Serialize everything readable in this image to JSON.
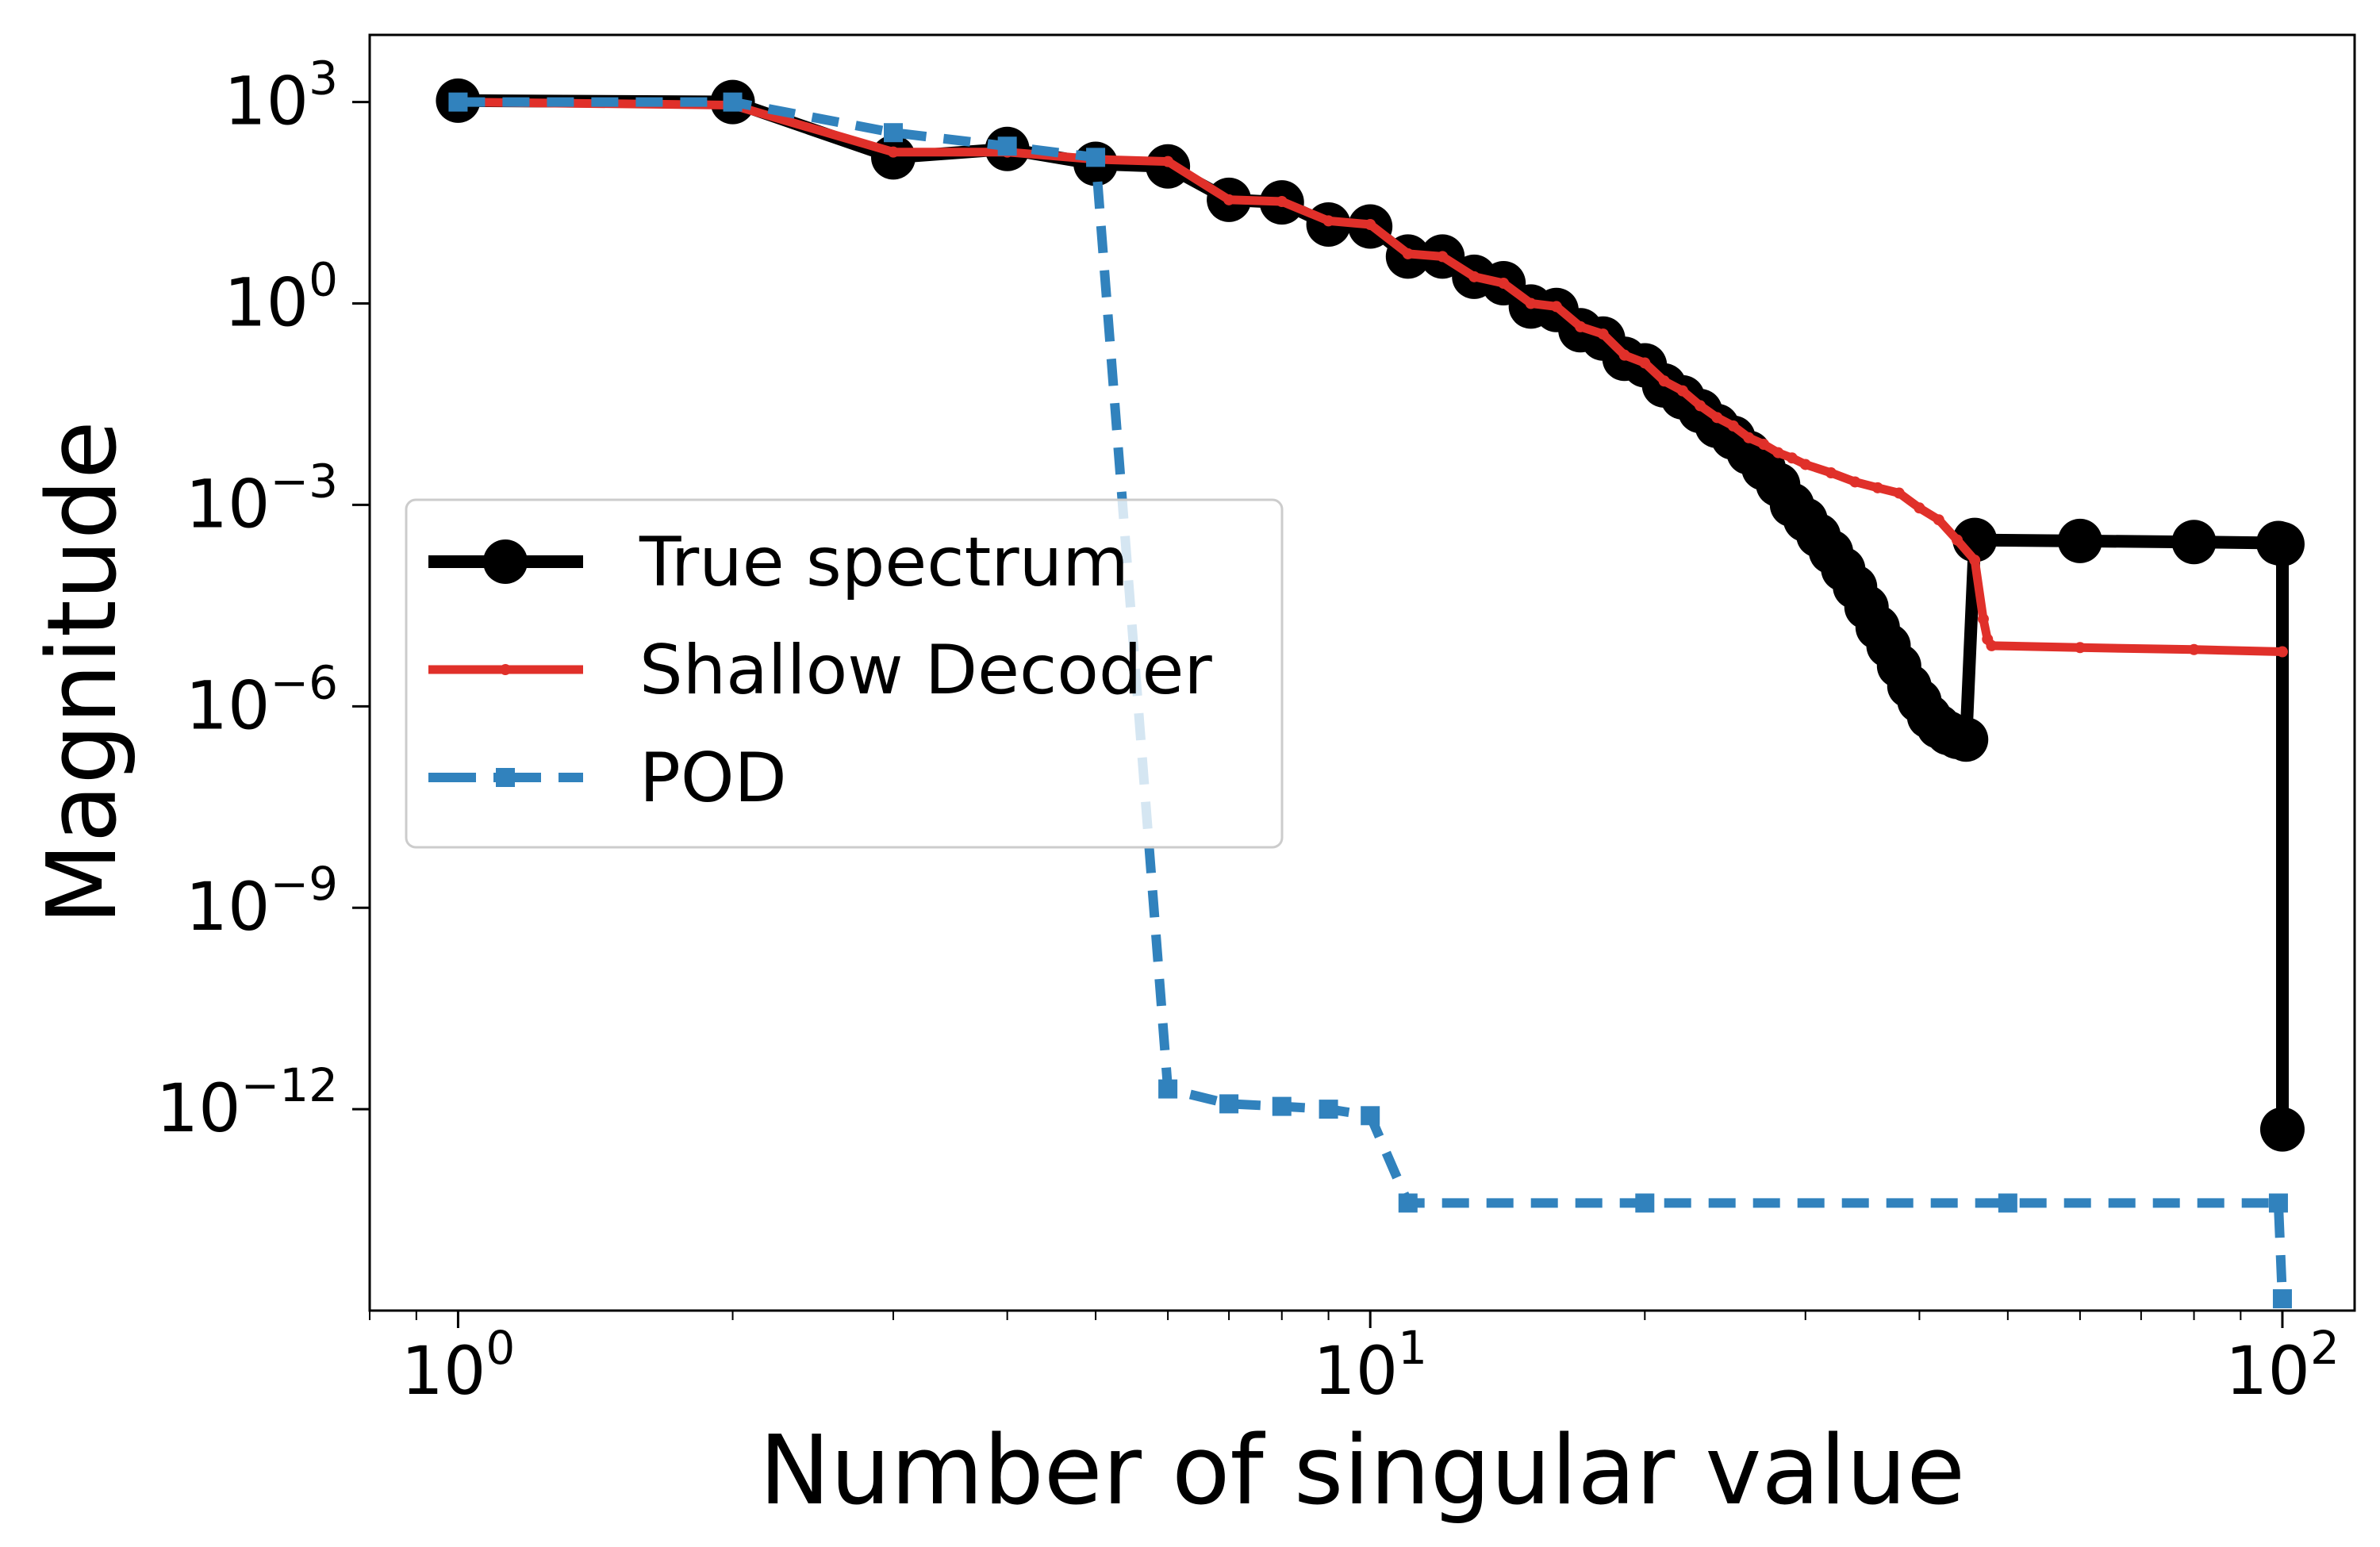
{
  "chart_data": {
    "type": "line",
    "title": "",
    "xlabel": "Number of singular value",
    "ylabel": "Magnitude",
    "xscale": "log",
    "yscale": "log",
    "xlim": [
      0.8,
      120
    ],
    "ylim": [
      1e-15,
      10000
    ],
    "grid": false,
    "legend_position": "center-left",
    "x_ticks": [
      {
        "value": 1,
        "base": "10",
        "exp": "0"
      },
      {
        "value": 10,
        "base": "10",
        "exp": "1"
      },
      {
        "value": 100,
        "base": "10",
        "exp": "2"
      }
    ],
    "y_ticks": [
      {
        "value": 1000,
        "base": "10",
        "exp": "3"
      },
      {
        "value": 1,
        "base": "10",
        "exp": "0"
      },
      {
        "value": 0.001,
        "base": "10",
        "exp": "−3"
      },
      {
        "value": 1e-06,
        "base": "10",
        "exp": "−6"
      },
      {
        "value": 1e-09,
        "base": "10",
        "exp": "−9"
      },
      {
        "value": 1e-12,
        "base": "10",
        "exp": "−12"
      }
    ],
    "series": [
      {
        "name": "True spectrum",
        "color": "#000000",
        "style": "solid-circle-markers",
        "points": [
          [
            1,
            1050
          ],
          [
            2,
            1000
          ],
          [
            3,
            150
          ],
          [
            4,
            200
          ],
          [
            5,
            120
          ],
          [
            6,
            110
          ],
          [
            7,
            35
          ],
          [
            8,
            32
          ],
          [
            9,
            15
          ],
          [
            10,
            14
          ],
          [
            11,
            5
          ],
          [
            12,
            5
          ],
          [
            13,
            2.5
          ],
          [
            14,
            2
          ],
          [
            15,
            0.9
          ],
          [
            16,
            0.8
          ],
          [
            17,
            0.4
          ],
          [
            18,
            0.3
          ],
          [
            19,
            0.15
          ],
          [
            20,
            0.12
          ],
          [
            21,
            0.06
          ],
          [
            22,
            0.04
          ],
          [
            23,
            0.025
          ],
          [
            24,
            0.015
          ],
          [
            25,
            0.01
          ],
          [
            26,
            0.006
          ],
          [
            27,
            0.0035
          ],
          [
            28,
            0.002
          ],
          [
            29,
            0.001
          ],
          [
            30,
            0.0006
          ],
          [
            31,
            0.00035
          ],
          [
            32,
            0.0002
          ],
          [
            33,
            0.00011
          ],
          [
            34,
            6e-05
          ],
          [
            35,
            3e-05
          ],
          [
            36,
            1.5e-05
          ],
          [
            37,
            8e-06
          ],
          [
            38,
            4e-06
          ],
          [
            39,
            2e-06
          ],
          [
            40,
            1.2e-06
          ],
          [
            41,
            7e-07
          ],
          [
            42,
            5e-07
          ],
          [
            43,
            4e-07
          ],
          [
            44,
            3.5e-07
          ],
          [
            45,
            3.2e-07
          ],
          [
            46,
            0.0003
          ],
          [
            60,
            0.00029
          ],
          [
            80,
            0.00028
          ],
          [
            99,
            0.00027
          ],
          [
            100,
            0.00026
          ],
          [
            100,
            5e-13
          ]
        ]
      },
      {
        "name": "Shallow Decoder",
        "color": "#e0302a",
        "style": "solid-small-markers",
        "points": [
          [
            1,
            1000
          ],
          [
            2,
            900
          ],
          [
            3,
            180
          ],
          [
            4,
            180
          ],
          [
            5,
            140
          ],
          [
            6,
            130
          ],
          [
            7,
            35
          ],
          [
            8,
            33
          ],
          [
            9,
            17
          ],
          [
            10,
            15
          ],
          [
            11,
            5.5
          ],
          [
            12,
            5
          ],
          [
            13,
            2.5
          ],
          [
            14,
            2
          ],
          [
            15,
            1
          ],
          [
            16,
            0.9
          ],
          [
            17,
            0.45
          ],
          [
            18,
            0.35
          ],
          [
            19,
            0.17
          ],
          [
            20,
            0.13
          ],
          [
            21,
            0.07
          ],
          [
            22,
            0.05
          ],
          [
            23,
            0.03
          ],
          [
            24,
            0.02
          ],
          [
            25,
            0.015
          ],
          [
            26,
            0.01
          ],
          [
            27,
            0.008
          ],
          [
            28,
            0.006
          ],
          [
            29,
            0.005
          ],
          [
            30,
            0.004
          ],
          [
            32,
            0.003
          ],
          [
            34,
            0.0022
          ],
          [
            36,
            0.0018
          ],
          [
            38,
            0.0015
          ],
          [
            40,
            0.0009
          ],
          [
            42,
            0.0006
          ],
          [
            44,
            0.0003
          ],
          [
            46,
            0.00015
          ],
          [
            47,
            2e-05
          ],
          [
            47.5,
            1e-05
          ],
          [
            48,
            8e-06
          ],
          [
            60,
            7.5e-06
          ],
          [
            80,
            7e-06
          ],
          [
            100,
            6.5e-06
          ]
        ]
      },
      {
        "name": "POD",
        "color": "#3182bd",
        "style": "dashed-square-markers",
        "points": [
          [
            1,
            1000
          ],
          [
            2,
            1000
          ],
          [
            3,
            350
          ],
          [
            4,
            220
          ],
          [
            5,
            150
          ],
          [
            6,
            2e-12
          ],
          [
            7,
            1.2e-12
          ],
          [
            8,
            1.1e-12
          ],
          [
            9,
            1e-12
          ],
          [
            10,
            8e-13
          ],
          [
            11,
            4e-14
          ],
          [
            20,
            4e-14
          ],
          [
            50,
            4e-14
          ],
          [
            99,
            4e-14
          ],
          [
            100,
            1.5e-15
          ]
        ]
      }
    ]
  }
}
